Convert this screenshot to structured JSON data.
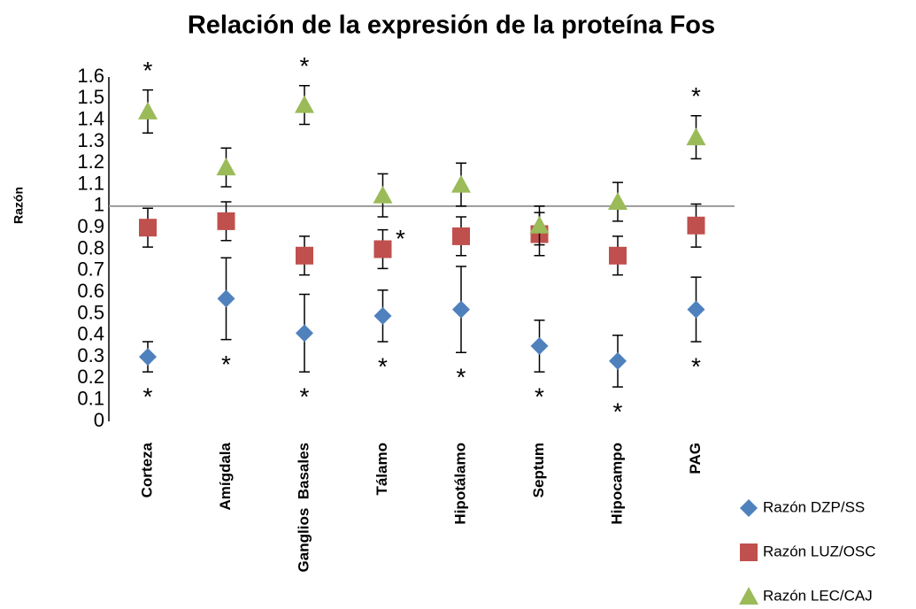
{
  "chart_data": {
    "type": "scatter",
    "title": "Relación de la expresión de la proteína Fos",
    "y_label": "Razón",
    "categories": [
      "Corteza",
      "Amígdala",
      "Ganglios  Basales",
      "Tálamo",
      "Hipotálamo",
      "Septum",
      "Hipocampo",
      "PAG"
    ],
    "ylim": [
      0,
      1.6
    ],
    "yticks": [
      0,
      0.1,
      0.2,
      0.3,
      0.4,
      0.5,
      0.6,
      0.7,
      0.8,
      0.9,
      1,
      1.1,
      1.2,
      1.3,
      1.4,
      1.5,
      1.6
    ],
    "reference_line": 1,
    "legend": "right",
    "series": [
      {
        "name": "Razón DZP/SS",
        "color": "#4f81bd",
        "marker": "diamond",
        "values": [
          0.3,
          0.57,
          0.41,
          0.49,
          0.52,
          0.35,
          0.28,
          0.52
        ],
        "errors": [
          0.07,
          0.19,
          0.18,
          0.12,
          0.2,
          0.12,
          0.12,
          0.15
        ],
        "annotations": [
          "*",
          "*",
          "*",
          "*",
          "*",
          "*",
          "*",
          "*"
        ]
      },
      {
        "name": "Razón LUZ/OSC",
        "color": "#c0504d",
        "marker": "square",
        "values": [
          0.9,
          0.93,
          0.77,
          0.8,
          0.86,
          0.87,
          0.77,
          0.91
        ],
        "errors": [
          0.09,
          0.09,
          0.09,
          0.09,
          0.09,
          0.1,
          0.09,
          0.1
        ],
        "annotations": [
          null,
          null,
          null,
          "*",
          null,
          null,
          null,
          null
        ]
      },
      {
        "name": "Razón LEC/CAJ",
        "color": "#9bbb59",
        "marker": "triangle",
        "values": [
          1.44,
          1.18,
          1.47,
          1.05,
          1.1,
          0.91,
          1.02,
          1.32
        ],
        "errors": [
          0.1,
          0.09,
          0.09,
          0.1,
          0.1,
          0.09,
          0.09,
          0.1
        ],
        "annotations": [
          "*",
          null,
          "*",
          null,
          null,
          null,
          null,
          "*"
        ]
      }
    ]
  }
}
